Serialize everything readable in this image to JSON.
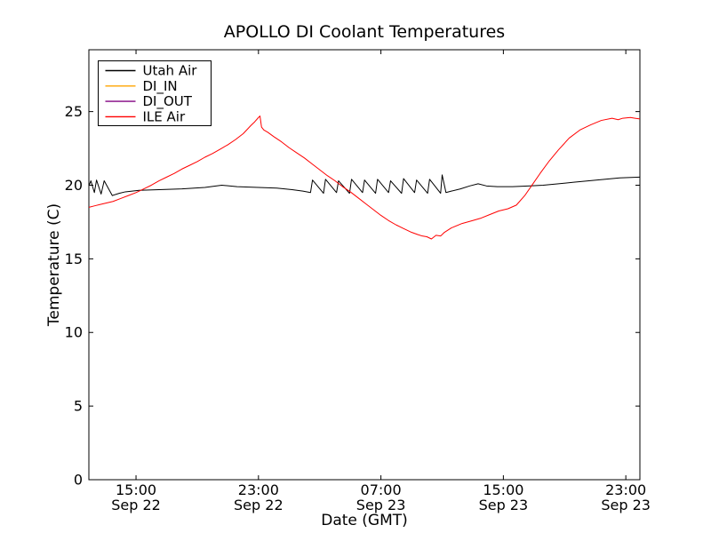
{
  "chart_data": {
    "type": "line",
    "title": "APOLLO DI Coolant Temperatures",
    "xlabel": "Date (GMT)",
    "ylabel": "Temperature (C)",
    "grid": false,
    "x_unit": "hours since Sep 22 00:00 GMT",
    "xlim": [
      11.92,
      47.92
    ],
    "ylim": [
      0,
      29.2
    ],
    "yticks": [
      0,
      5,
      10,
      15,
      20,
      25
    ],
    "xticks": [
      {
        "t": 15,
        "time": "15:00",
        "date": "Sep 22"
      },
      {
        "t": 23,
        "time": "23:00",
        "date": "Sep 22"
      },
      {
        "t": 31,
        "time": "07:00",
        "date": "Sep 23"
      },
      {
        "t": 39,
        "time": "15:00",
        "date": "Sep 23"
      },
      {
        "t": 47,
        "time": "23:00",
        "date": "Sep 23"
      }
    ],
    "legend": {
      "position": "upper left",
      "entries": [
        {
          "label": "Utah Air",
          "color": "#000000"
        },
        {
          "label": "DI_IN",
          "color": "#ffa500"
        },
        {
          "label": "DI_OUT",
          "color": "#800080"
        },
        {
          "label": "ILE Air",
          "color": "#ff0000"
        }
      ]
    },
    "series": [
      {
        "name": "Utah Air",
        "color": "#000000",
        "points": [
          [
            11.92,
            19.95
          ],
          [
            12.05,
            20.3
          ],
          [
            12.28,
            19.5
          ],
          [
            12.42,
            20.35
          ],
          [
            12.72,
            19.4
          ],
          [
            12.92,
            20.3
          ],
          [
            13.45,
            19.3
          ],
          [
            13.9,
            19.45
          ],
          [
            14.3,
            19.55
          ],
          [
            15.2,
            19.65
          ],
          [
            16.5,
            19.7
          ],
          [
            18,
            19.75
          ],
          [
            19.5,
            19.85
          ],
          [
            20.6,
            20.0
          ],
          [
            21.6,
            19.9
          ],
          [
            23,
            19.85
          ],
          [
            24.2,
            19.8
          ],
          [
            25.2,
            19.7
          ],
          [
            25.9,
            19.6
          ],
          [
            26.4,
            19.5
          ],
          [
            26.53,
            20.35
          ],
          [
            27.25,
            19.45
          ],
          [
            27.38,
            20.4
          ],
          [
            28.1,
            19.5
          ],
          [
            28.23,
            20.3
          ],
          [
            28.95,
            19.45
          ],
          [
            29.08,
            20.4
          ],
          [
            29.8,
            19.5
          ],
          [
            29.93,
            20.35
          ],
          [
            30.65,
            19.45
          ],
          [
            30.78,
            20.4
          ],
          [
            31.5,
            19.5
          ],
          [
            31.63,
            20.3
          ],
          [
            32.35,
            19.45
          ],
          [
            32.48,
            20.45
          ],
          [
            33.2,
            19.5
          ],
          [
            33.33,
            20.35
          ],
          [
            34.05,
            19.45
          ],
          [
            34.18,
            20.4
          ],
          [
            34.9,
            19.45
          ],
          [
            35.0,
            20.7
          ],
          [
            35.25,
            19.5
          ],
          [
            35.6,
            19.6
          ],
          [
            36.2,
            19.75
          ],
          [
            36.8,
            19.95
          ],
          [
            37.35,
            20.1
          ],
          [
            37.9,
            19.95
          ],
          [
            38.6,
            19.9
          ],
          [
            39.6,
            19.9
          ],
          [
            40.6,
            19.95
          ],
          [
            41.6,
            20.0
          ],
          [
            42.6,
            20.1
          ],
          [
            43.6,
            20.2
          ],
          [
            44.6,
            20.3
          ],
          [
            45.6,
            20.4
          ],
          [
            46.6,
            20.5
          ],
          [
            47.92,
            20.55
          ]
        ]
      },
      {
        "name": "DI_IN",
        "color": "#ffa500",
        "points": []
      },
      {
        "name": "DI_OUT",
        "color": "#800080",
        "points": []
      },
      {
        "name": "ILE Air",
        "color": "#ff0000",
        "points": [
          [
            11.92,
            18.5
          ],
          [
            12.3,
            18.6
          ],
          [
            12.7,
            18.7
          ],
          [
            13.1,
            18.8
          ],
          [
            13.5,
            18.9
          ],
          [
            14,
            19.1
          ],
          [
            14.5,
            19.3
          ],
          [
            15,
            19.5
          ],
          [
            15.5,
            19.75
          ],
          [
            16,
            20.0
          ],
          [
            16.5,
            20.3
          ],
          [
            17,
            20.55
          ],
          [
            17.5,
            20.8
          ],
          [
            18,
            21.1
          ],
          [
            18.5,
            21.35
          ],
          [
            19,
            21.6
          ],
          [
            19.5,
            21.9
          ],
          [
            20,
            22.15
          ],
          [
            20.5,
            22.45
          ],
          [
            21,
            22.75
          ],
          [
            21.5,
            23.1
          ],
          [
            22,
            23.5
          ],
          [
            22.5,
            24.05
          ],
          [
            22.75,
            24.3
          ],
          [
            23.0,
            24.6
          ],
          [
            23.1,
            24.7
          ],
          [
            23.2,
            23.95
          ],
          [
            23.35,
            23.75
          ],
          [
            23.6,
            23.6
          ],
          [
            24,
            23.3
          ],
          [
            24.5,
            22.95
          ],
          [
            25,
            22.55
          ],
          [
            25.5,
            22.2
          ],
          [
            26,
            21.85
          ],
          [
            26.5,
            21.45
          ],
          [
            27,
            21.05
          ],
          [
            27.5,
            20.65
          ],
          [
            28,
            20.3
          ],
          [
            28.5,
            19.9
          ],
          [
            29,
            19.55
          ],
          [
            29.5,
            19.15
          ],
          [
            30,
            18.75
          ],
          [
            30.5,
            18.35
          ],
          [
            31,
            17.95
          ],
          [
            31.5,
            17.6
          ],
          [
            32,
            17.3
          ],
          [
            32.5,
            17.05
          ],
          [
            33,
            16.8
          ],
          [
            33.4,
            16.65
          ],
          [
            33.7,
            16.55
          ],
          [
            34,
            16.5
          ],
          [
            34.3,
            16.35
          ],
          [
            34.6,
            16.6
          ],
          [
            34.9,
            16.55
          ],
          [
            35.15,
            16.8
          ],
          [
            35.6,
            17.1
          ],
          [
            36.3,
            17.4
          ],
          [
            37,
            17.6
          ],
          [
            37.5,
            17.75
          ],
          [
            38.1,
            18.0
          ],
          [
            38.7,
            18.25
          ],
          [
            39.3,
            18.4
          ],
          [
            39.85,
            18.65
          ],
          [
            40.4,
            19.3
          ],
          [
            40.9,
            20.05
          ],
          [
            41.4,
            20.8
          ],
          [
            42,
            21.65
          ],
          [
            42.6,
            22.4
          ],
          [
            43.3,
            23.2
          ],
          [
            44,
            23.75
          ],
          [
            44.7,
            24.1
          ],
          [
            45.4,
            24.4
          ],
          [
            46.1,
            24.55
          ],
          [
            46.5,
            24.45
          ],
          [
            46.8,
            24.55
          ],
          [
            47.3,
            24.6
          ],
          [
            47.6,
            24.55
          ],
          [
            47.92,
            24.5
          ]
        ]
      }
    ]
  }
}
